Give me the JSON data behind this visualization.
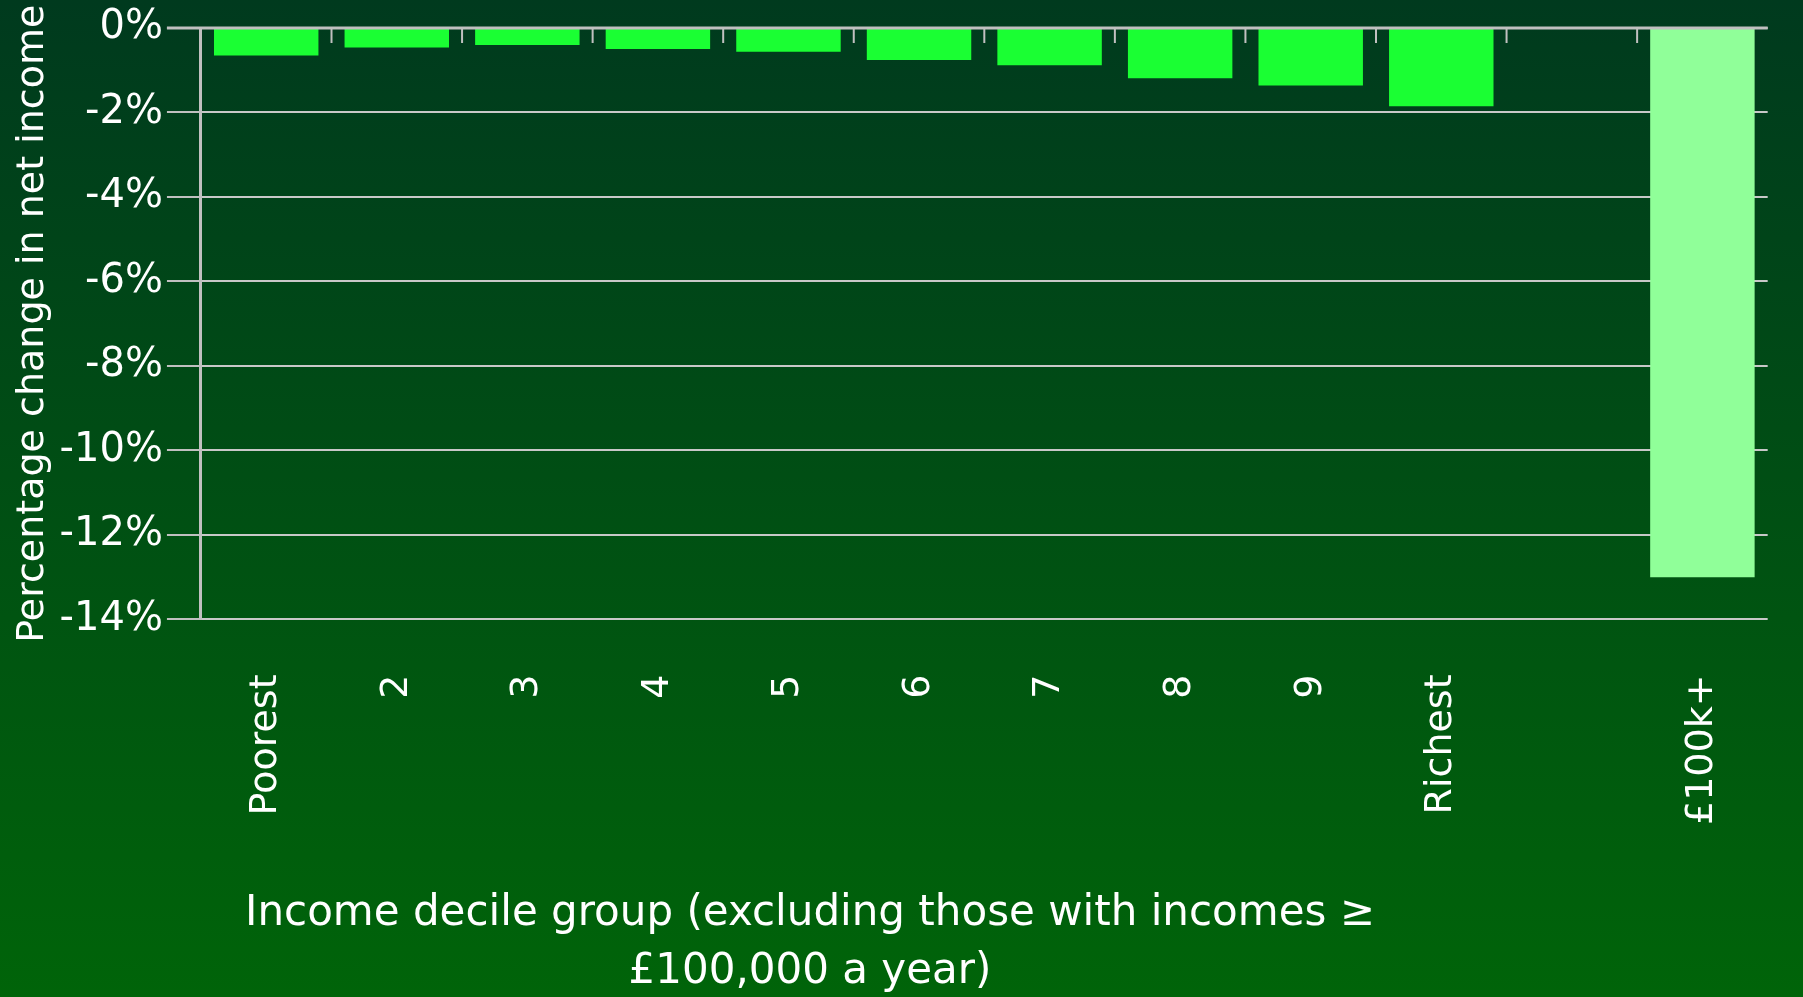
{
  "chart_data": {
    "type": "bar",
    "stacked": true,
    "xlabel": "Income decile group (excluding those with incomes ≥ £100,000 a year)",
    "ylabel": "Percentage change in net income",
    "categories": [
      "Poorest",
      "2",
      "3",
      "4",
      "5",
      "6",
      "7",
      "8",
      "9",
      "Richest",
      null,
      "£100k+"
    ],
    "series": [
      {
        "colors": [
          "#1aff33",
          "#1aff33",
          "#1aff33",
          "#1aff33",
          "#1aff33",
          "#1aff33",
          "#1aff33",
          "#1aff33",
          "#1aff33",
          "#1aff33",
          "#1aff33",
          "#90ff99"
        ],
        "values": [
          -0.65,
          -0.46,
          -0.4,
          -0.5,
          -0.56,
          -0.76,
          -0.88,
          -1.19,
          -1.36,
          -1.85,
          null,
          -10.2
        ]
      },
      {
        "color": "#90ff99",
        "values": [
          null,
          null,
          null,
          null,
          null,
          null,
          null,
          null,
          null,
          null,
          null,
          -2.8
        ]
      }
    ],
    "ylim": [
      -14,
      0
    ],
    "yticks": [
      {
        "value": 0,
        "label": "0%"
      },
      {
        "value": -2,
        "label": "-2%"
      },
      {
        "value": -4,
        "label": "-4%"
      },
      {
        "value": -6,
        "label": "-6%"
      },
      {
        "value": -8,
        "label": "-8%"
      },
      {
        "value": -10,
        "label": "-10%"
      },
      {
        "value": -12,
        "label": "-12%"
      },
      {
        "value": -14,
        "label": "-14%"
      }
    ],
    "grid": "y",
    "legend": false
  }
}
